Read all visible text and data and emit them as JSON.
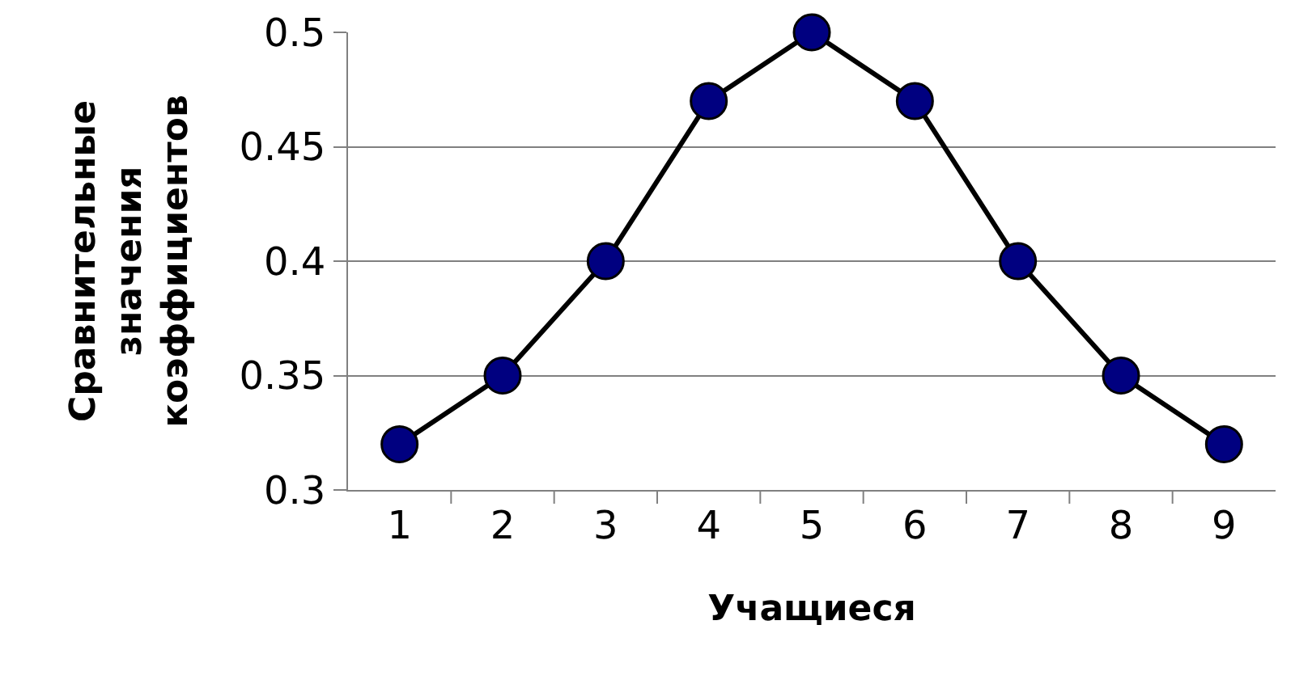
{
  "chart_data": {
    "type": "line",
    "xlabel": "Учащиеся",
    "ylabel": "Сравнительные\nзначения\nкоэффициентов",
    "categories": [
      "1",
      "2",
      "3",
      "4",
      "5",
      "6",
      "7",
      "8",
      "9"
    ],
    "series": [
      {
        "color": "#000080",
        "values": [
          0.32,
          0.35,
          0.4,
          0.47,
          0.5,
          0.47,
          0.4,
          0.35,
          0.32
        ]
      }
    ],
    "ylim": [
      0.3,
      0.5
    ],
    "yticks": [
      0.3,
      0.35,
      0.4,
      0.45,
      0.5
    ],
    "grid": "y",
    "marker": "circle",
    "line_style": "solid"
  }
}
